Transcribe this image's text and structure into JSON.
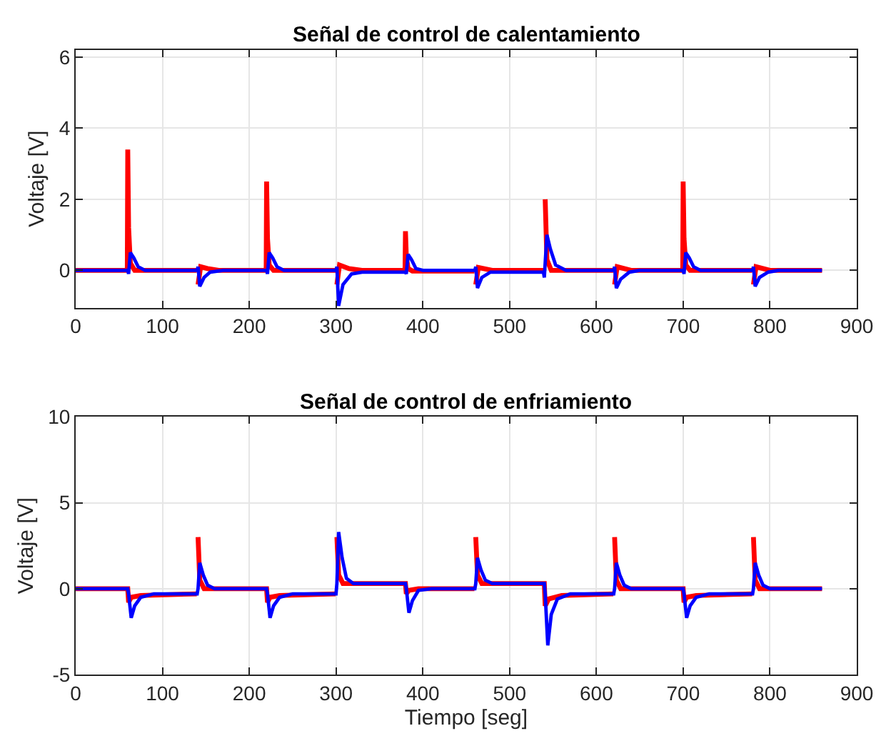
{
  "chart_data": [
    {
      "type": "line",
      "title": "Señal de control de calentamiento",
      "ylabel": "Voltaje [V]",
      "xlim": [
        0,
        900
      ],
      "xticks": [
        0,
        100,
        200,
        300,
        400,
        500,
        600,
        700,
        800,
        900
      ],
      "ylim": [
        -1.05,
        6.2
      ],
      "yticks": [
        0,
        2,
        4,
        6
      ],
      "grid": true,
      "line_style": "solid",
      "series": [
        {
          "color": "#ff0000",
          "x": [
            0,
            59.5,
            60,
            61,
            63,
            68,
            139.5,
            140,
            141,
            144,
            152,
            165,
            219.5,
            220,
            221,
            223,
            228,
            299.5,
            300,
            301,
            304,
            315,
            330,
            379.5,
            380,
            381,
            383,
            388,
            459.5,
            460,
            461,
            464,
            480,
            539.5,
            540,
            541,
            543,
            548,
            619.5,
            620,
            621,
            624,
            640,
            699.5,
            700,
            701,
            703,
            708,
            779.5,
            780,
            781,
            784,
            800,
            860
          ],
          "values": [
            0,
            0,
            3.4,
            1.2,
            0.2,
            0,
            0,
            null,
            -0.4,
            0.1,
            0.05,
            0,
            0,
            2.5,
            0.9,
            0.15,
            0,
            0,
            null,
            -0.4,
            0.15,
            0.05,
            0,
            0,
            1.1,
            0.4,
            0.05,
            -0.02,
            -0.02,
            null,
            -0.4,
            0.08,
            0,
            0,
            null,
            2.0,
            0.3,
            0,
            0,
            null,
            -0.4,
            0.1,
            0,
            0,
            2.5,
            0.9,
            0.15,
            0,
            0,
            null,
            -0.4,
            0.1,
            0,
            0
          ]
        },
        {
          "color": "#0000ff",
          "x": [
            0,
            60,
            61,
            63,
            67,
            72,
            80,
            140,
            141,
            143,
            148,
            155,
            170,
            220,
            221,
            223,
            227,
            232,
            240,
            300,
            301,
            303,
            308,
            318,
            330,
            380,
            381,
            383,
            387,
            392,
            400,
            460,
            461,
            463,
            468,
            478,
            539,
            540,
            543,
            547,
            553,
            565,
            620,
            621,
            623,
            628,
            638,
            650,
            700,
            701,
            703,
            707,
            712,
            720,
            780,
            781,
            783,
            788,
            798,
            810,
            860
          ],
          "values": [
            0,
            0,
            -0.1,
            0.5,
            0.35,
            0.1,
            0,
            0,
            0.1,
            -0.45,
            -0.2,
            -0.05,
            0,
            0,
            -0.1,
            0.5,
            0.35,
            0.1,
            0,
            0,
            0.1,
            -1.0,
            -0.4,
            -0.1,
            -0.05,
            -0.05,
            -0.1,
            0.45,
            0.3,
            0.05,
            0,
            0,
            0.1,
            -0.5,
            -0.2,
            -0.05,
            -0.05,
            -0.2,
            1.0,
            0.6,
            0.15,
            0,
            0,
            0.1,
            -0.5,
            -0.25,
            -0.05,
            0,
            0,
            -0.1,
            0.5,
            0.35,
            0.1,
            0,
            0,
            0.1,
            -0.45,
            -0.2,
            -0.05,
            0,
            0
          ]
        }
      ]
    },
    {
      "type": "line",
      "title": "Señal de control de enfriamiento",
      "xlabel": "Tiempo [seg]",
      "ylabel": "Voltaje [V]",
      "xlim": [
        0,
        900
      ],
      "xticks": [
        0,
        100,
        200,
        300,
        400,
        500,
        600,
        700,
        800,
        900
      ],
      "ylim": [
        -5,
        10
      ],
      "yticks": [
        -5,
        0,
        5,
        10
      ],
      "grid": true,
      "line_style": "solid",
      "series": [
        {
          "color": "#ff0000",
          "x": [
            0,
            60,
            61,
            64,
            75,
            139.5,
            140,
            141,
            143,
            148,
            220,
            221,
            224,
            235,
            299.5,
            300,
            301,
            303,
            308,
            380,
            381,
            384,
            395,
            459.5,
            460,
            461,
            463,
            468,
            540,
            541,
            545,
            560,
            619.5,
            620,
            621,
            623,
            628,
            700,
            701,
            704,
            715,
            779.5,
            780,
            781,
            783,
            788,
            860
          ],
          "values": [
            0,
            0,
            -0.8,
            -0.5,
            -0.4,
            -0.3,
            null,
            3,
            0.5,
            0,
            0,
            -0.8,
            -0.5,
            -0.4,
            -0.3,
            null,
            3,
            0.8,
            0.3,
            0.3,
            -0.3,
            -0.1,
            0,
            0,
            null,
            3,
            0.8,
            0.3,
            0.3,
            -1.0,
            -0.6,
            -0.4,
            -0.3,
            null,
            3,
            0.5,
            0,
            0,
            -0.8,
            -0.5,
            -0.4,
            -0.3,
            null,
            3,
            0.5,
            0,
            0
          ]
        },
        {
          "color": "#0000ff",
          "x": [
            0,
            60,
            61,
            64,
            68,
            75,
            90,
            140,
            141,
            143,
            147,
            152,
            160,
            220,
            221,
            224,
            228,
            235,
            250,
            300,
            301,
            303,
            307,
            312,
            320,
            380,
            381,
            384,
            388,
            395,
            410,
            460,
            461,
            463,
            467,
            472,
            480,
            540,
            541,
            544,
            548,
            555,
            570,
            620,
            621,
            623,
            627,
            632,
            640,
            700,
            701,
            704,
            708,
            715,
            730,
            780,
            781,
            783,
            787,
            792,
            800,
            860
          ],
          "values": [
            0,
            0,
            -0.3,
            -1.7,
            -1.0,
            -0.5,
            -0.3,
            -0.3,
            0,
            1.5,
            0.8,
            0.2,
            0,
            0,
            -0.3,
            -1.7,
            -1.0,
            -0.5,
            -0.3,
            -0.3,
            0.3,
            3.3,
            1.8,
            0.6,
            0.3,
            0.3,
            0,
            -1.4,
            -0.7,
            -0.1,
            0,
            0,
            0.3,
            1.8,
            1.1,
            0.5,
            0.3,
            0.3,
            -0.3,
            -3.3,
            -1.5,
            -0.6,
            -0.3,
            -0.3,
            0,
            1.5,
            0.8,
            0.2,
            0,
            0,
            -0.3,
            -1.7,
            -1.0,
            -0.5,
            -0.3,
            -0.3,
            0,
            1.5,
            0.8,
            0.2,
            0,
            0
          ]
        }
      ]
    }
  ]
}
